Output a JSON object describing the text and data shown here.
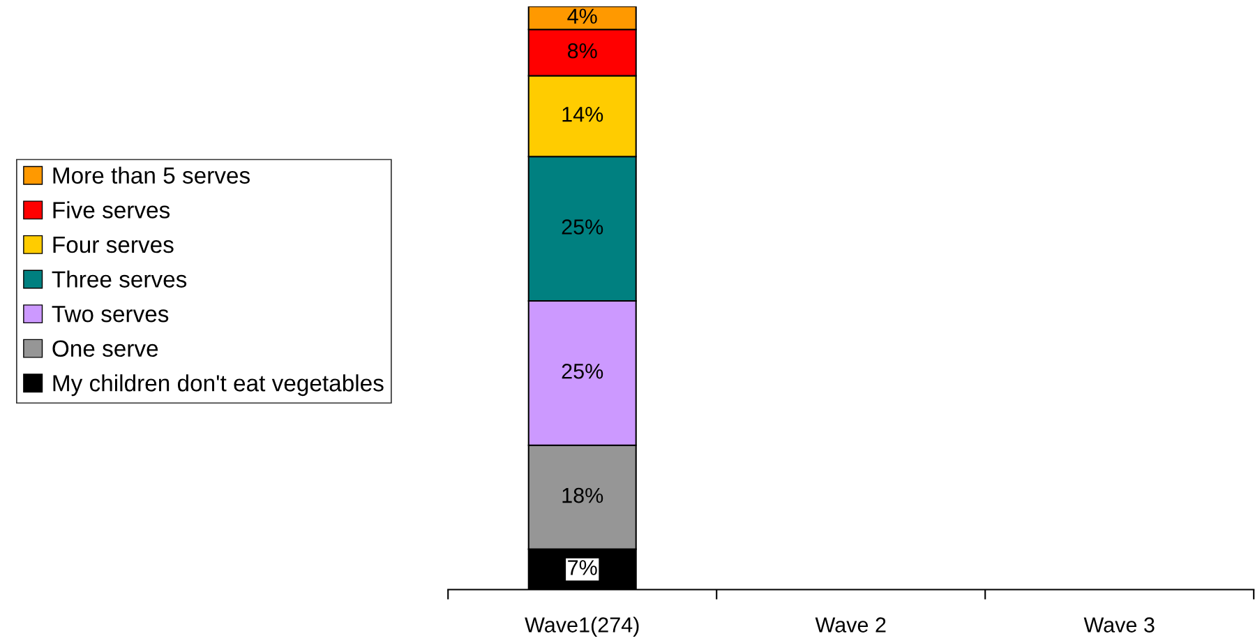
{
  "chart_data": {
    "type": "bar",
    "stacked": true,
    "categories": [
      "Wave1(274)",
      "Wave 2",
      "Wave 3"
    ],
    "series": [
      {
        "name": "My children don't eat vegetables",
        "color": "#000000",
        "values": [
          7,
          null,
          null
        ],
        "value_labels": [
          "7%",
          null,
          null
        ]
      },
      {
        "name": "One serve",
        "color": "#969696",
        "values": [
          18,
          null,
          null
        ],
        "value_labels": [
          "18%",
          null,
          null
        ]
      },
      {
        "name": "Two serves",
        "color": "#cc99ff",
        "values": [
          25,
          null,
          null
        ],
        "value_labels": [
          "25%",
          null,
          null
        ]
      },
      {
        "name": "Three serves",
        "color": "#008080",
        "values": [
          25,
          null,
          null
        ],
        "value_labels": [
          "25%",
          null,
          null
        ]
      },
      {
        "name": "Four serves",
        "color": "#ffcc00",
        "values": [
          14,
          null,
          null
        ],
        "value_labels": [
          "14%",
          null,
          null
        ]
      },
      {
        "name": "Five serves",
        "color": "#ff0000",
        "values": [
          8,
          null,
          null
        ],
        "value_labels": [
          "8%",
          null,
          null
        ]
      },
      {
        "name": "More than 5 serves",
        "color": "#ff9900",
        "values": [
          4,
          null,
          null
        ],
        "value_labels": [
          "4%",
          null,
          null
        ]
      }
    ],
    "legend": "left",
    "grid": false
  }
}
